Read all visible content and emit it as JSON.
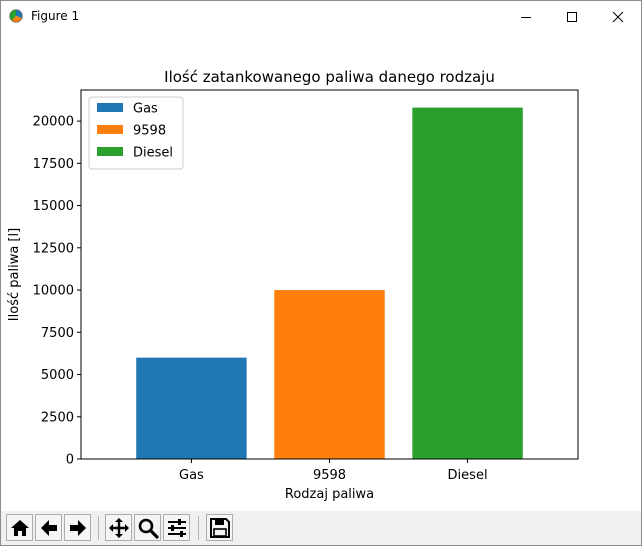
{
  "window": {
    "title": "Figure 1",
    "controls": [
      "minimize",
      "maximize",
      "close"
    ]
  },
  "toolbar": {
    "buttons": [
      {
        "name": "home",
        "icon": "home-icon"
      },
      {
        "name": "back",
        "icon": "arrow-left-icon"
      },
      {
        "name": "forward",
        "icon": "arrow-right-icon"
      },
      {
        "name": "pan",
        "icon": "move-icon"
      },
      {
        "name": "zoom",
        "icon": "magnifier-icon"
      },
      {
        "name": "configure-subplots",
        "icon": "sliders-icon"
      },
      {
        "name": "save",
        "icon": "floppy-disk-icon"
      }
    ]
  },
  "chart_data": {
    "type": "bar",
    "title": "Ilość zatankowanego paliwa danego rodzaju",
    "xlabel": "Rodzaj paliwa",
    "ylabel": "Ilość paliwa [l]",
    "categories": [
      "Gas",
      "9598",
      "Diesel"
    ],
    "series": [
      {
        "name": "Gas",
        "category": "Gas",
        "value": 6000,
        "color": "#1f77b4"
      },
      {
        "name": "9598",
        "category": "9598",
        "value": 10000,
        "color": "#ff7f0e"
      },
      {
        "name": "Diesel",
        "category": "Diesel",
        "value": 20800,
        "color": "#2ca02c"
      }
    ],
    "ylim": [
      0,
      21840
    ],
    "yticks": [
      0,
      2500,
      5000,
      7500,
      10000,
      12500,
      15000,
      17500,
      20000
    ],
    "legend_position": "upper-left",
    "grid": false
  }
}
